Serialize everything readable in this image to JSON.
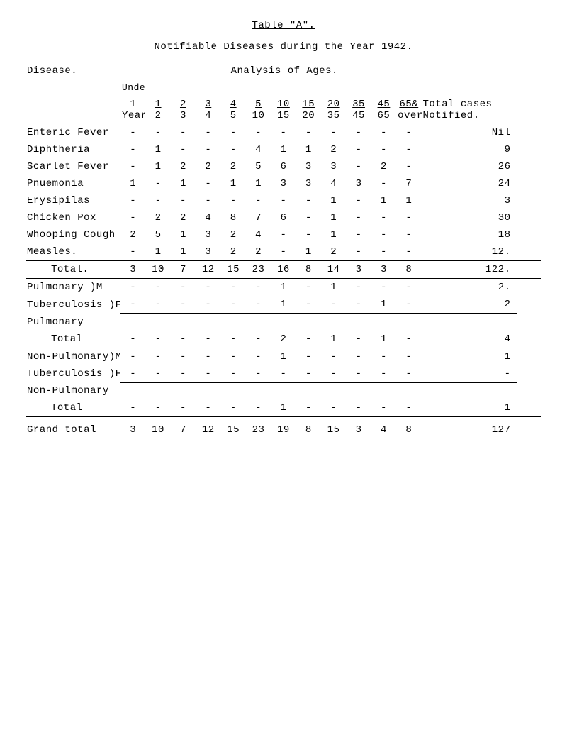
{
  "title": "Table \"A\".",
  "subtitle": "Notifiable Diseases during the Year 1942.",
  "disease_label": "Disease.",
  "analysis_label": "Analysis of Ages.",
  "under_label": "Under",
  "head1": [
    "1",
    "1",
    "2",
    "3",
    "4",
    "5",
    "10",
    "15",
    "20",
    "35",
    "45",
    "65&",
    "Total cases"
  ],
  "head2": [
    "Year",
    "2",
    "3",
    "4",
    "5",
    "10",
    "15",
    "20",
    "35",
    "45",
    "65",
    "over",
    "Notified."
  ],
  "rows": [
    {
      "label": "Enteric Fever",
      "cells": [
        "-",
        "-",
        "-",
        "-",
        "-",
        "-",
        "-",
        "-",
        "-",
        "-",
        "-",
        "-"
      ],
      "total": "Nil"
    },
    {
      "label": "Diphtheria",
      "cells": [
        "-",
        "1",
        "-",
        "-",
        "-",
        "4",
        "1",
        "1",
        "2",
        "-",
        "-",
        "-"
      ],
      "total": "9"
    },
    {
      "label": "Scarlet Fever",
      "cells": [
        "-",
        "1",
        "2",
        "2",
        "2",
        "5",
        "6",
        "3",
        "3",
        "-",
        "2",
        "-"
      ],
      "total": "26"
    },
    {
      "label": "Pnuemonia",
      "cells": [
        "1",
        "-",
        "1",
        "-",
        "1",
        "1",
        "3",
        "3",
        "4",
        "3",
        "-",
        "7"
      ],
      "total": "24"
    },
    {
      "label": "Erysipilas",
      "cells": [
        "-",
        "-",
        "-",
        "-",
        "-",
        "-",
        "-",
        "-",
        "1",
        "-",
        "1",
        "1"
      ],
      "total": "3"
    },
    {
      "label": "Chicken Pox",
      "cells": [
        "-",
        "2",
        "2",
        "4",
        "8",
        "7",
        "6",
        "-",
        "1",
        "-",
        "-",
        "-"
      ],
      "total": "30"
    },
    {
      "label": "Whooping Cough",
      "cells": [
        "2",
        "5",
        "1",
        "3",
        "2",
        "4",
        "-",
        "-",
        "1",
        "-",
        "-",
        "-"
      ],
      "total": "18"
    },
    {
      "label": "Measles.",
      "cells": [
        "-",
        "1",
        "1",
        "3",
        "2",
        "2",
        "-",
        "1",
        "2",
        "-",
        "-",
        "-"
      ],
      "total": "12."
    }
  ],
  "total_label": "Total.",
  "total_row": {
    "cells": [
      "3",
      "10",
      "7",
      "12",
      "15",
      "23",
      "16",
      "8",
      "14",
      "3",
      "3",
      "8"
    ],
    "total": "122."
  },
  "pulm_m": {
    "label": "Pulmonary",
    "suffix": ")M",
    "cells": [
      "-",
      "-",
      "-",
      "-",
      "-",
      "-",
      "1",
      "-",
      "1",
      "-",
      "-",
      "-"
    ],
    "total": "2."
  },
  "pulm_f": {
    "label": "Tuberculosis",
    "suffix": ")F",
    "cells": [
      "-",
      "-",
      "-",
      "-",
      "-",
      "-",
      "1",
      "-",
      "-",
      "-",
      "1",
      "-"
    ],
    "total": "2"
  },
  "pulm_total_label": "Pulmonary",
  "pulm_total_label2": "Total",
  "pulm_total": {
    "cells": [
      "-",
      "-",
      "-",
      "-",
      "-",
      "-",
      "2",
      "-",
      "1",
      "-",
      "1",
      "-"
    ],
    "total": "4"
  },
  "nonp_m": {
    "label": "Non-Pulmonary",
    "suffix": ")M",
    "cells": [
      "-",
      "-",
      "-",
      "-",
      "-",
      "-",
      "1",
      "-",
      "-",
      "-",
      "-",
      "-"
    ],
    "total": "1"
  },
  "nonp_f": {
    "label": "Tuberculosis",
    "suffix": ")F",
    "cells": [
      "-",
      "-",
      "-",
      "-",
      "-",
      "-",
      "-",
      "-",
      "-",
      "-",
      "-",
      "-"
    ],
    "total": "-"
  },
  "nonp_total_label": "Non-Pulmonary",
  "nonp_total_label2": "Total",
  "nonp_total": {
    "cells": [
      "-",
      "-",
      "-",
      "-",
      "-",
      "-",
      "1",
      "-",
      "-",
      "-",
      "-",
      "-"
    ],
    "total": "1"
  },
  "grand_label": "Grand total",
  "grand": {
    "cells": [
      "3",
      "10",
      "7",
      "12",
      "15",
      "23",
      "19",
      "8",
      "15",
      "3",
      "4",
      "8"
    ],
    "total": "127"
  }
}
